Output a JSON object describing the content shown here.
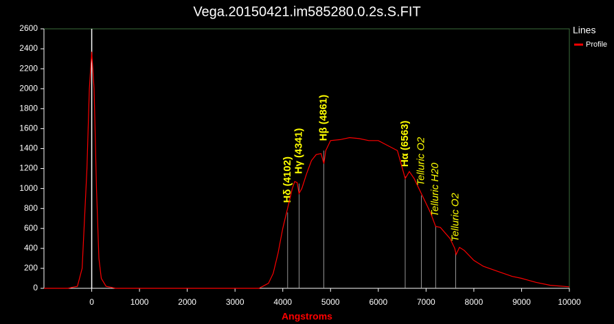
{
  "chart_data": {
    "type": "line",
    "title": "Vega.20150421.im585280.0.2s.S.FIT",
    "x_label": "Angstroms",
    "legend_title": "Lines",
    "legend": "top-right",
    "xlim": [
      -1000,
      10000
    ],
    "xticks": [
      0,
      1000,
      2000,
      3000,
      4000,
      5000,
      6000,
      7000,
      8000,
      9000,
      10000
    ],
    "ylim": [
      0,
      2600
    ],
    "yticks": [
      0,
      200,
      400,
      600,
      800,
      1000,
      1200,
      1400,
      1600,
      1800,
      2000,
      2200,
      2400,
      2600
    ],
    "vline": 0,
    "x": [
      -1000,
      -500,
      -300,
      -200,
      -100,
      -50,
      0,
      50,
      100,
      150,
      200,
      300,
      500,
      3500,
      3700,
      3800,
      3900,
      4000,
      4100,
      4200,
      4250,
      4300,
      4341,
      4400,
      4500,
      4600,
      4700,
      4800,
      4861,
      4900,
      5000,
      5200,
      5400,
      5600,
      5800,
      6000,
      6200,
      6400,
      6563,
      6650,
      6750,
      6900,
      7000,
      7100,
      7200,
      7300,
      7500,
      7600,
      7630,
      7700,
      7800,
      8000,
      8200,
      8500,
      8800,
      9000,
      9300,
      9600,
      10000
    ],
    "series": [
      {
        "name": "Profile",
        "color": "#ff0000",
        "values": [
          0,
          0,
          20,
          200,
          1200,
          2000,
          2370,
          2000,
          1000,
          300,
          100,
          20,
          0,
          0,
          50,
          150,
          350,
          600,
          800,
          1000,
          1070,
          1060,
          950,
          1000,
          1150,
          1280,
          1340,
          1350,
          1250,
          1380,
          1480,
          1490,
          1510,
          1500,
          1480,
          1480,
          1430,
          1380,
          1100,
          1170,
          1100,
          950,
          850,
          750,
          620,
          610,
          500,
          400,
          340,
          410,
          380,
          280,
          220,
          170,
          120,
          100,
          60,
          30,
          15
        ]
      }
    ],
    "annotations": [
      {
        "text": "Hδ (4102)",
        "x": 4102,
        "y": 760
      },
      {
        "text": "Hγ (4341)",
        "x": 4341,
        "y": 1050
      },
      {
        "text": "Hβ (4861)",
        "x": 4861,
        "y": 1380
      },
      {
        "text": "Hα (6563)",
        "x": 6563,
        "y": 1120
      },
      {
        "text": "Telluric O2",
        "x": 6900,
        "y": 930
      },
      {
        "text": "Telluric H20",
        "x": 7200,
        "y": 620
      },
      {
        "text": "Telluric O2",
        "x": 7620,
        "y": 370
      }
    ]
  }
}
